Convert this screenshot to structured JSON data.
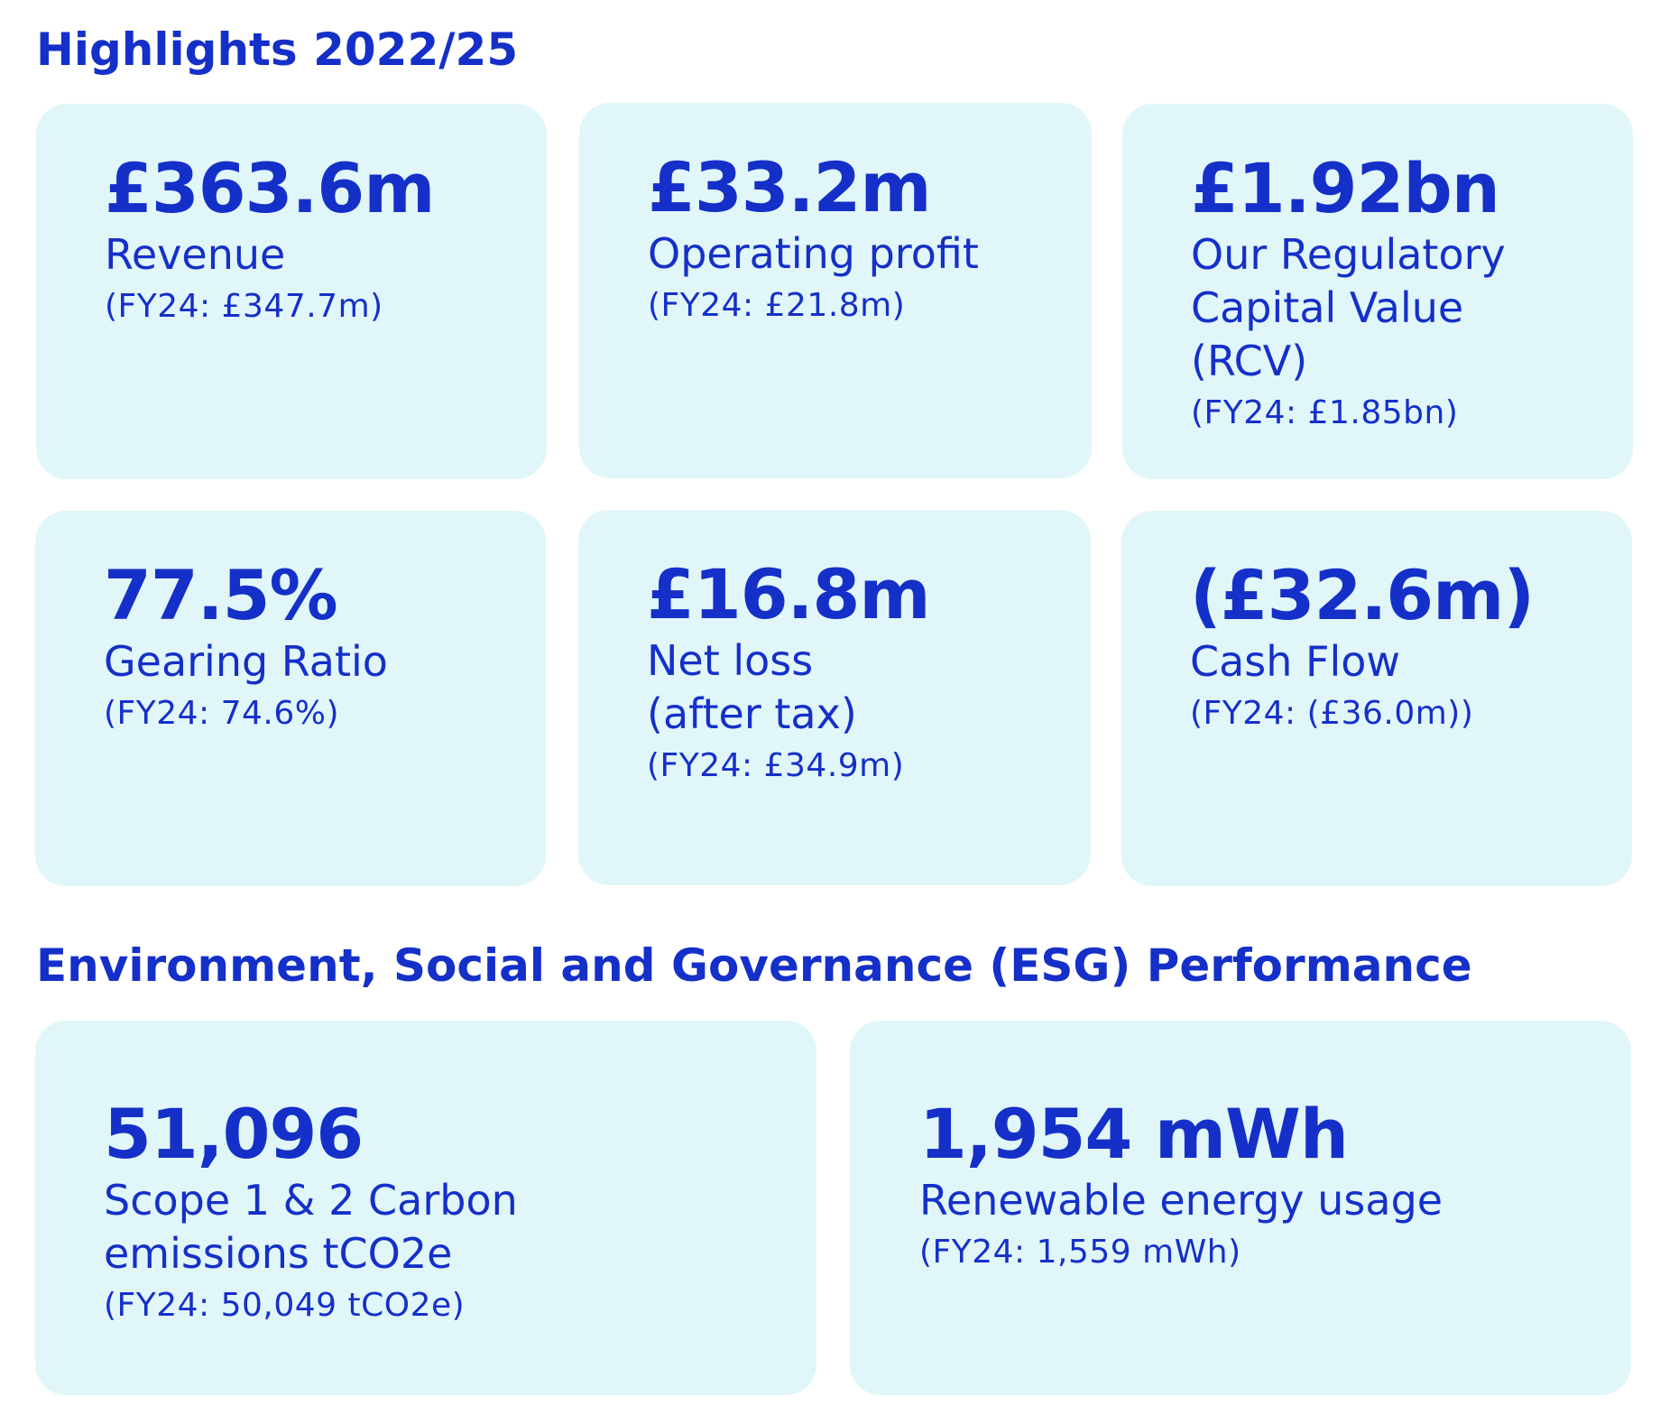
{
  "highlights": {
    "heading": "Highlights 2022/25",
    "cards": [
      {
        "value": "£363.6m",
        "label": "Revenue",
        "prior": "(FY24: £347.7m)"
      },
      {
        "value": "£33.2m",
        "label": "Operating profit",
        "prior": "(FY24: £21.8m)"
      },
      {
        "value": "£1.92bn",
        "label": "Our Regulatory\nCapital Value\n(RCV)",
        "prior": "(FY24: £1.85bn)"
      },
      {
        "value": "77.5%",
        "label": "Gearing Ratio",
        "prior": "(FY24: 74.6%)"
      },
      {
        "value": "£16.8m",
        "label": "Net loss\n(after tax)",
        "prior": "(FY24: £34.9m)"
      },
      {
        "value": "(£32.6m)",
        "label": "Cash Flow",
        "prior": "(FY24: (£36.0m))"
      }
    ]
  },
  "esg": {
    "heading": "Environment, Social and Governance (ESG) Performance",
    "cards": [
      {
        "value": "51,096",
        "label": "Scope 1 & 2 Carbon\nemissions tCO2e",
        "prior": "(FY24: 50,049 tCO2e)"
      },
      {
        "value": "1,954 mWh",
        "label": "Renewable energy usage",
        "prior": "(FY24: 1,559 mWh)"
      }
    ]
  },
  "colors": {
    "text": "#1530c8",
    "card_background": "#e1f6f9",
    "page_background": "#ffffff"
  }
}
